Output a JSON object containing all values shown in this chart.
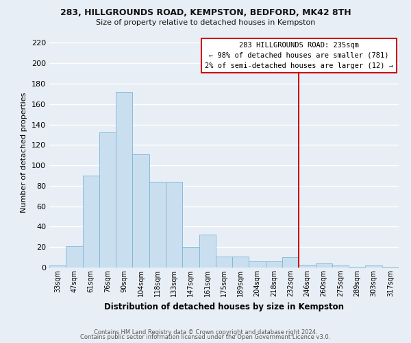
{
  "title1": "283, HILLGROUNDS ROAD, KEMPSTON, BEDFORD, MK42 8TH",
  "title2": "Size of property relative to detached houses in Kempston",
  "xlabel": "Distribution of detached houses by size in Kempston",
  "ylabel": "Number of detached properties",
  "bar_labels": [
    "33sqm",
    "47sqm",
    "61sqm",
    "76sqm",
    "90sqm",
    "104sqm",
    "118sqm",
    "133sqm",
    "147sqm",
    "161sqm",
    "175sqm",
    "189sqm",
    "204sqm",
    "218sqm",
    "232sqm",
    "246sqm",
    "260sqm",
    "275sqm",
    "289sqm",
    "303sqm",
    "317sqm"
  ],
  "bar_values": [
    2,
    21,
    90,
    132,
    172,
    111,
    84,
    84,
    20,
    32,
    11,
    11,
    6,
    6,
    10,
    3,
    4,
    2,
    1,
    2,
    1
  ],
  "bar_color": "#c9dff0",
  "bar_edge_color": "#7fb3d3",
  "bg_color": "#e8eef5",
  "grid_color": "#ffffff",
  "ylim": [
    0,
    225
  ],
  "yticks": [
    0,
    20,
    40,
    60,
    80,
    100,
    120,
    140,
    160,
    180,
    200,
    220
  ],
  "vline_x": 14.5,
  "vline_color": "#cc0000",
  "annotation_title": "283 HILLGROUNDS ROAD: 235sqm",
  "annotation_line1": "← 98% of detached houses are smaller (781)",
  "annotation_line2": "2% of semi-detached houses are larger (12) →",
  "footer1": "Contains HM Land Registry data © Crown copyright and database right 2024.",
  "footer2": "Contains public sector information licensed under the Open Government Licence v3.0."
}
